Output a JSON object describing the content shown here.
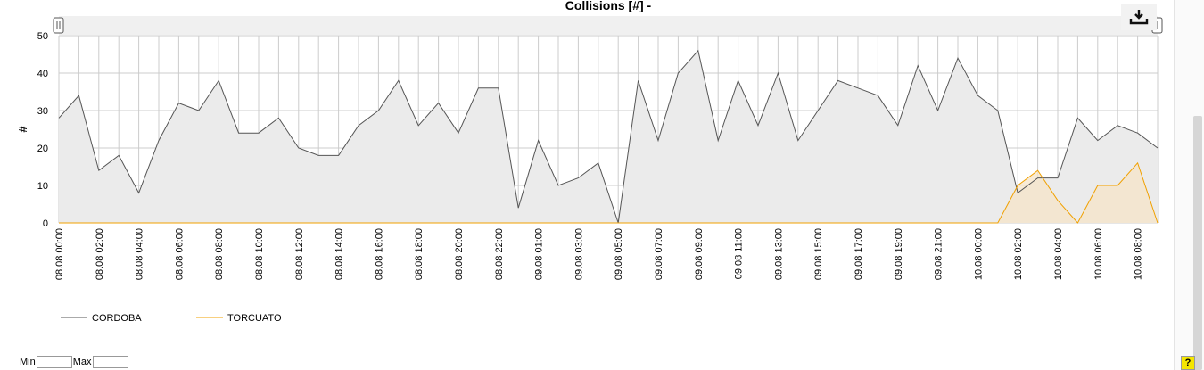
{
  "chart_data": {
    "type": "area",
    "title": "Collisions [#] -",
    "ylabel": "#",
    "ylim": [
      0,
      50
    ],
    "yticks": [
      0,
      10,
      20,
      30,
      40,
      50
    ],
    "grid": true,
    "legend_position": "bottom-left",
    "x_tick_labels": [
      "08.08 00:00",
      "08.08 02:00",
      "08.08 04:00",
      "08.08 06:00",
      "08.08 08:00",
      "08.08 10:00",
      "08.08 12:00",
      "08.08 14:00",
      "08.08 16:00",
      "08.08 18:00",
      "08.08 20:00",
      "08.08 22:00",
      "09.08 01:00",
      "09.08 03:00",
      "09.08 05:00",
      "09.08 07:00",
      "09.08 09:00",
      "09.08 11:00",
      "09.08 13:00",
      "09.08 15:00",
      "09.08 17:00",
      "09.08 19:00",
      "09.08 21:00",
      "10.08 00:00",
      "10.08 02:00",
      "10.08 04:00",
      "10.08 06:00",
      "10.08 08:00"
    ],
    "series": [
      {
        "name": "CORDOBA",
        "color": "#555555",
        "fill": "#ebebeb",
        "values": [
          28,
          34,
          14,
          18,
          8,
          22,
          32,
          30,
          38,
          24,
          24,
          28,
          20,
          18,
          18,
          26,
          30,
          38,
          26,
          32,
          24,
          36,
          36,
          4,
          22,
          10,
          12,
          16,
          0,
          38,
          22,
          40,
          46,
          22,
          38,
          26,
          40,
          22,
          30,
          38,
          36,
          34,
          26,
          42,
          30,
          44,
          34,
          30,
          8,
          12,
          12,
          28,
          22,
          26,
          24,
          20
        ]
      },
      {
        "name": "TORCUATO",
        "color": "#f0a000",
        "fill": "#f5e4c8",
        "values": [
          0,
          0,
          0,
          0,
          0,
          0,
          0,
          0,
          0,
          0,
          0,
          0,
          0,
          0,
          0,
          0,
          0,
          0,
          0,
          0,
          0,
          0,
          0,
          0,
          0,
          0,
          0,
          0,
          0,
          0,
          0,
          0,
          0,
          0,
          0,
          0,
          0,
          0,
          0,
          0,
          0,
          0,
          0,
          0,
          0,
          0,
          0,
          0,
          10,
          14,
          6,
          0,
          10,
          10,
          16,
          0
        ]
      }
    ]
  },
  "controls": {
    "min_label": "Min",
    "max_label": "Max",
    "min_value": "",
    "max_value": "",
    "help_label": "?",
    "download_icon": "download-icon"
  }
}
